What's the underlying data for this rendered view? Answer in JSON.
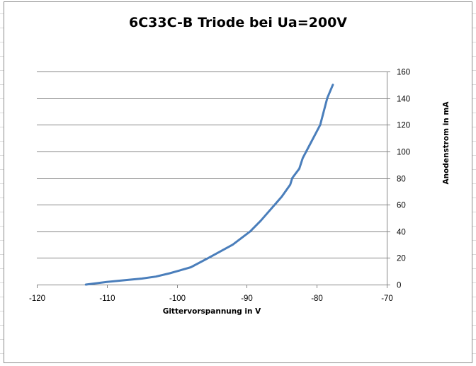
{
  "chart_data": {
    "type": "line",
    "title": "6C33C-B Triode bei Ua=200V",
    "xlabel": "Gittervorspannung  in V",
    "ylabel": "Anodenstrom in mA",
    "xlim": [
      -120,
      -70
    ],
    "ylim": [
      0,
      160
    ],
    "x_ticks": [
      "-120",
      "-110",
      "-100",
      "-90",
      "-80",
      "-70"
    ],
    "y_ticks": [
      "0",
      "20",
      "40",
      "60",
      "80",
      "100",
      "120",
      "140",
      "160"
    ],
    "y_axis_side": "right",
    "grid": "horizontal",
    "legend": "none",
    "series_color": "#4a7ebb",
    "series": [
      {
        "name": "Anodenstrom",
        "x": [
          -113,
          -110,
          -107,
          -105,
          -103,
          -101,
          -100,
          -98,
          -95.5,
          -92,
          -89.5,
          -88,
          -86,
          -85,
          -83.8,
          -83.5,
          -82.5,
          -82,
          -81,
          -80,
          -79.5,
          -78.5,
          -77.7
        ],
        "y": [
          0,
          2,
          3.5,
          4.5,
          6,
          8.5,
          10,
          13,
          20,
          30,
          40,
          48,
          60,
          66,
          75,
          80,
          87,
          95,
          105,
          115,
          120,
          140,
          150
        ]
      }
    ]
  }
}
